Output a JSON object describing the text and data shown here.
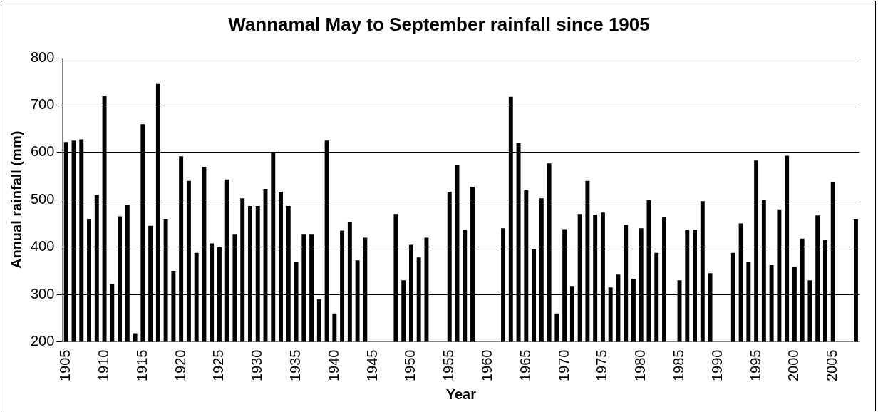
{
  "chart_data": {
    "type": "bar",
    "title": "Wannamal May to September rainfall since 1905",
    "xlabel": "Year",
    "ylabel": "Annual rainfall (mm)",
    "categories": [
      "1905",
      null,
      null,
      null,
      null,
      "1910",
      null,
      null,
      null,
      null,
      "1915",
      null,
      null,
      null,
      null,
      "1920",
      null,
      null,
      null,
      null,
      "1925",
      null,
      null,
      null,
      null,
      "1930",
      null,
      null,
      null,
      null,
      "1935",
      null,
      null,
      null,
      null,
      "1940",
      null,
      null,
      null,
      null,
      "1945",
      null,
      null,
      null,
      null,
      "1950",
      null,
      null,
      null,
      null,
      "1955",
      null,
      null,
      null,
      null,
      "1960",
      null,
      null,
      null,
      null,
      "1965",
      null,
      null,
      null,
      null,
      "1970",
      null,
      null,
      null,
      null,
      "1975",
      null,
      null,
      null,
      null,
      "1980",
      null,
      null,
      null,
      null,
      "1985",
      null,
      null,
      null,
      null,
      "1990",
      null,
      null,
      null,
      null,
      "1995",
      null,
      null,
      null,
      null,
      "2000",
      null,
      null,
      null,
      null,
      "2005",
      null,
      null,
      null
    ],
    "values": [
      622,
      625,
      628,
      460,
      510,
      720,
      322,
      465,
      490,
      218,
      660,
      445,
      745,
      460,
      350,
      592,
      540,
      388,
      570,
      408,
      400,
      543,
      428,
      503,
      487,
      487,
      523,
      600,
      517,
      487,
      368,
      428,
      428,
      290,
      625,
      260,
      435,
      453,
      372,
      420,
      null,
      null,
      null,
      470,
      330,
      405,
      378,
      420,
      null,
      null,
      517,
      573,
      437,
      527,
      null,
      null,
      null,
      440,
      718,
      620,
      520,
      395,
      503,
      577,
      260,
      438,
      318,
      470,
      540,
      468,
      473,
      315,
      342,
      447,
      333,
      440,
      500,
      388,
      463,
      null,
      330,
      437,
      437,
      497,
      345,
      null,
      null,
      388,
      450,
      368,
      583,
      500,
      362,
      480,
      593,
      358,
      418,
      330,
      467,
      415,
      537,
      null,
      null,
      460
    ],
    "color": "#000000",
    "ylim": [
      200,
      800
    ],
    "yticks": [
      200,
      300,
      400,
      500,
      600,
      700,
      800
    ],
    "grid": "y"
  }
}
